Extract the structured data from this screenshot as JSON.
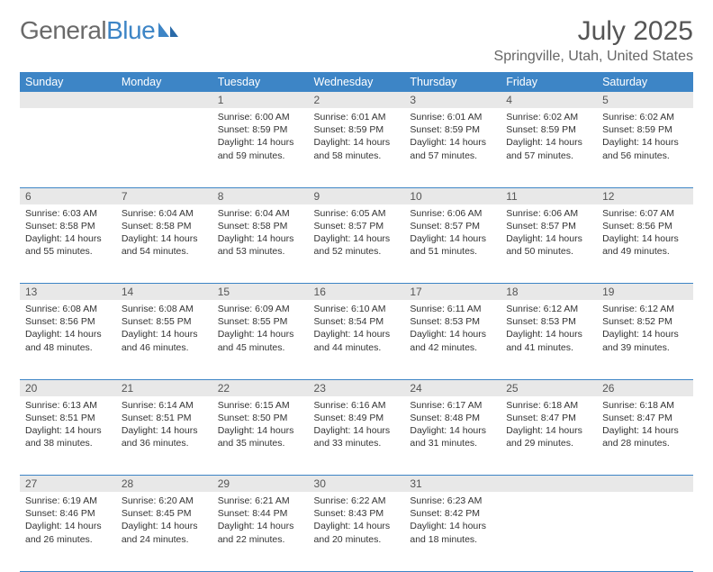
{
  "logo": {
    "text_general": "General",
    "text_blue": "Blue"
  },
  "title": "July 2025",
  "location": "Springville, Utah, United States",
  "day_headers": [
    "Sunday",
    "Monday",
    "Tuesday",
    "Wednesday",
    "Thursday",
    "Friday",
    "Saturday"
  ],
  "colors": {
    "header_bg": "#3d85c6",
    "header_text": "#ffffff",
    "daynum_bg": "#e8e8e8",
    "row_border": "#3d85c6",
    "title_color": "#555555",
    "body_text": "#333333",
    "logo_gray": "#6a6a6a",
    "logo_blue": "#3d85c6"
  },
  "weeks": [
    [
      null,
      null,
      {
        "n": "1",
        "sr": "Sunrise: 6:00 AM",
        "ss": "Sunset: 8:59 PM",
        "dl": "Daylight: 14 hours and 59 minutes."
      },
      {
        "n": "2",
        "sr": "Sunrise: 6:01 AM",
        "ss": "Sunset: 8:59 PM",
        "dl": "Daylight: 14 hours and 58 minutes."
      },
      {
        "n": "3",
        "sr": "Sunrise: 6:01 AM",
        "ss": "Sunset: 8:59 PM",
        "dl": "Daylight: 14 hours and 57 minutes."
      },
      {
        "n": "4",
        "sr": "Sunrise: 6:02 AM",
        "ss": "Sunset: 8:59 PM",
        "dl": "Daylight: 14 hours and 57 minutes."
      },
      {
        "n": "5",
        "sr": "Sunrise: 6:02 AM",
        "ss": "Sunset: 8:59 PM",
        "dl": "Daylight: 14 hours and 56 minutes."
      }
    ],
    [
      {
        "n": "6",
        "sr": "Sunrise: 6:03 AM",
        "ss": "Sunset: 8:58 PM",
        "dl": "Daylight: 14 hours and 55 minutes."
      },
      {
        "n": "7",
        "sr": "Sunrise: 6:04 AM",
        "ss": "Sunset: 8:58 PM",
        "dl": "Daylight: 14 hours and 54 minutes."
      },
      {
        "n": "8",
        "sr": "Sunrise: 6:04 AM",
        "ss": "Sunset: 8:58 PM",
        "dl": "Daylight: 14 hours and 53 minutes."
      },
      {
        "n": "9",
        "sr": "Sunrise: 6:05 AM",
        "ss": "Sunset: 8:57 PM",
        "dl": "Daylight: 14 hours and 52 minutes."
      },
      {
        "n": "10",
        "sr": "Sunrise: 6:06 AM",
        "ss": "Sunset: 8:57 PM",
        "dl": "Daylight: 14 hours and 51 minutes."
      },
      {
        "n": "11",
        "sr": "Sunrise: 6:06 AM",
        "ss": "Sunset: 8:57 PM",
        "dl": "Daylight: 14 hours and 50 minutes."
      },
      {
        "n": "12",
        "sr": "Sunrise: 6:07 AM",
        "ss": "Sunset: 8:56 PM",
        "dl": "Daylight: 14 hours and 49 minutes."
      }
    ],
    [
      {
        "n": "13",
        "sr": "Sunrise: 6:08 AM",
        "ss": "Sunset: 8:56 PM",
        "dl": "Daylight: 14 hours and 48 minutes."
      },
      {
        "n": "14",
        "sr": "Sunrise: 6:08 AM",
        "ss": "Sunset: 8:55 PM",
        "dl": "Daylight: 14 hours and 46 minutes."
      },
      {
        "n": "15",
        "sr": "Sunrise: 6:09 AM",
        "ss": "Sunset: 8:55 PM",
        "dl": "Daylight: 14 hours and 45 minutes."
      },
      {
        "n": "16",
        "sr": "Sunrise: 6:10 AM",
        "ss": "Sunset: 8:54 PM",
        "dl": "Daylight: 14 hours and 44 minutes."
      },
      {
        "n": "17",
        "sr": "Sunrise: 6:11 AM",
        "ss": "Sunset: 8:53 PM",
        "dl": "Daylight: 14 hours and 42 minutes."
      },
      {
        "n": "18",
        "sr": "Sunrise: 6:12 AM",
        "ss": "Sunset: 8:53 PM",
        "dl": "Daylight: 14 hours and 41 minutes."
      },
      {
        "n": "19",
        "sr": "Sunrise: 6:12 AM",
        "ss": "Sunset: 8:52 PM",
        "dl": "Daylight: 14 hours and 39 minutes."
      }
    ],
    [
      {
        "n": "20",
        "sr": "Sunrise: 6:13 AM",
        "ss": "Sunset: 8:51 PM",
        "dl": "Daylight: 14 hours and 38 minutes."
      },
      {
        "n": "21",
        "sr": "Sunrise: 6:14 AM",
        "ss": "Sunset: 8:51 PM",
        "dl": "Daylight: 14 hours and 36 minutes."
      },
      {
        "n": "22",
        "sr": "Sunrise: 6:15 AM",
        "ss": "Sunset: 8:50 PM",
        "dl": "Daylight: 14 hours and 35 minutes."
      },
      {
        "n": "23",
        "sr": "Sunrise: 6:16 AM",
        "ss": "Sunset: 8:49 PM",
        "dl": "Daylight: 14 hours and 33 minutes."
      },
      {
        "n": "24",
        "sr": "Sunrise: 6:17 AM",
        "ss": "Sunset: 8:48 PM",
        "dl": "Daylight: 14 hours and 31 minutes."
      },
      {
        "n": "25",
        "sr": "Sunrise: 6:18 AM",
        "ss": "Sunset: 8:47 PM",
        "dl": "Daylight: 14 hours and 29 minutes."
      },
      {
        "n": "26",
        "sr": "Sunrise: 6:18 AM",
        "ss": "Sunset: 8:47 PM",
        "dl": "Daylight: 14 hours and 28 minutes."
      }
    ],
    [
      {
        "n": "27",
        "sr": "Sunrise: 6:19 AM",
        "ss": "Sunset: 8:46 PM",
        "dl": "Daylight: 14 hours and 26 minutes."
      },
      {
        "n": "28",
        "sr": "Sunrise: 6:20 AM",
        "ss": "Sunset: 8:45 PM",
        "dl": "Daylight: 14 hours and 24 minutes."
      },
      {
        "n": "29",
        "sr": "Sunrise: 6:21 AM",
        "ss": "Sunset: 8:44 PM",
        "dl": "Daylight: 14 hours and 22 minutes."
      },
      {
        "n": "30",
        "sr": "Sunrise: 6:22 AM",
        "ss": "Sunset: 8:43 PM",
        "dl": "Daylight: 14 hours and 20 minutes."
      },
      {
        "n": "31",
        "sr": "Sunrise: 6:23 AM",
        "ss": "Sunset: 8:42 PM",
        "dl": "Daylight: 14 hours and 18 minutes."
      },
      null,
      null
    ]
  ]
}
